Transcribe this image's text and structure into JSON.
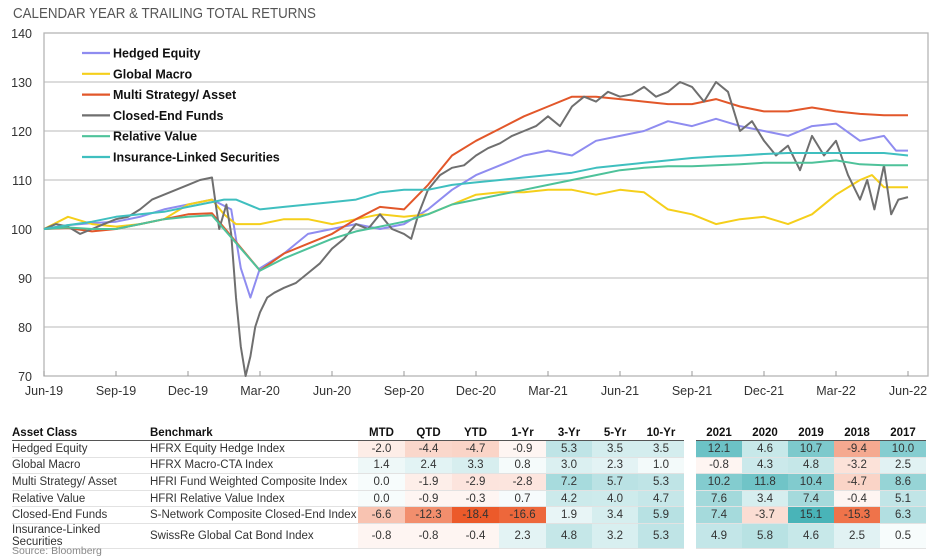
{
  "title": "CALENDAR YEAR & TRAILING TOTAL RETURNS",
  "chart_data": {
    "type": "line",
    "title": "CALENDAR YEAR & TRAILING TOTAL RETURNS",
    "xlabel": "",
    "ylabel": "",
    "ylim": [
      70,
      140
    ],
    "yticks": [
      70,
      80,
      90,
      100,
      110,
      120,
      130,
      140
    ],
    "xticks": [
      "Jun-19",
      "Sep-19",
      "Dec-19",
      "Mar-20",
      "Jun-20",
      "Sep-20",
      "Dec-20",
      "Mar-21",
      "Jun-21",
      "Sep-21",
      "Dec-21",
      "Mar-22",
      "Jun-22"
    ],
    "x_unit": "months since Jun-19",
    "grid": "horizontal",
    "legend_position": "top-left",
    "series": [
      {
        "name": "Hedged Equity",
        "color": "#8f8cf0",
        "x": [
          0,
          1,
          2,
          3,
          4,
          5,
          6,
          7,
          7.8,
          8.2,
          8.6,
          9,
          10,
          11,
          12,
          13,
          14,
          15,
          16,
          17,
          18,
          19,
          20,
          21,
          22,
          23,
          24,
          25,
          26,
          27,
          28,
          29,
          30,
          31,
          32,
          33,
          34,
          35,
          35.5,
          36
        ],
        "y": [
          100,
          100.8,
          101.2,
          101.5,
          102.5,
          104,
          105,
          106,
          104,
          92,
          86,
          92,
          95,
          99,
          100,
          101,
          100,
          101,
          104,
          108,
          111,
          113,
          115,
          116,
          115,
          118,
          119,
          120,
          122,
          121,
          122.5,
          121,
          120,
          119,
          121,
          121.5,
          118,
          119,
          116,
          116
        ]
      },
      {
        "name": "Global  Macro",
        "color": "#f5cf1b",
        "x": [
          0,
          1,
          2,
          3,
          4,
          5,
          6,
          7,
          7.5,
          8,
          9,
          10,
          11,
          12,
          13,
          14,
          15,
          16,
          17,
          18,
          19,
          20,
          21,
          22,
          23,
          24,
          25,
          26,
          27,
          28,
          29,
          30,
          31,
          32,
          33,
          34,
          34.5,
          35,
          36
        ],
        "y": [
          100,
          102.5,
          101,
          100.5,
          101,
          102,
          105,
          106,
          103,
          101,
          101,
          102,
          102,
          101,
          102,
          103,
          102.5,
          103,
          105,
          107,
          107.5,
          107.5,
          108,
          108,
          107,
          108,
          107.5,
          104,
          103,
          101,
          102,
          102.5,
          101,
          103,
          107,
          110,
          111,
          108.5,
          108.5
        ]
      },
      {
        "name": "Multi Strategy/ Asset",
        "color": "#e2572a",
        "x": [
          0,
          1,
          2,
          3,
          4,
          5,
          6,
          7,
          9,
          10,
          11,
          12,
          13,
          14,
          15,
          16,
          17,
          18,
          19,
          20,
          21,
          22,
          23,
          24,
          25,
          26,
          27,
          28,
          29,
          30,
          31,
          32,
          33,
          34,
          35,
          36
        ],
        "y": [
          100,
          100.2,
          99.5,
          100,
          101,
          102,
          103,
          103.2,
          91.5,
          95,
          97,
          99,
          102,
          104.5,
          104,
          109,
          115,
          118,
          120.5,
          123,
          125,
          127,
          127,
          126.5,
          126,
          125.5,
          125.5,
          126.5,
          125,
          124,
          124,
          124.8,
          124,
          123.5,
          123.2,
          123.2
        ]
      },
      {
        "name": "Closed-End Funds",
        "color": "#6f6f6f",
        "x": [
          0,
          0.5,
          1,
          1.5,
          2,
          2.5,
          3,
          3.5,
          4,
          4.5,
          5,
          5.5,
          6,
          6.5,
          7,
          7.3,
          7.6,
          7.8,
          8,
          8.2,
          8.4,
          8.6,
          8.8,
          9,
          9.3,
          9.6,
          10,
          10.5,
          11,
          11.5,
          12,
          12.5,
          13,
          13.5,
          14,
          14.5,
          15,
          15.3,
          15.6,
          16,
          16.5,
          17,
          17.5,
          18,
          18.5,
          19,
          19.5,
          20,
          20.5,
          21,
          21.5,
          22,
          22.5,
          23,
          23.5,
          24,
          24.5,
          25,
          25.5,
          26,
          26.5,
          27,
          27.5,
          28,
          28.5,
          29,
          29.5,
          30,
          30.5,
          31,
          31.5,
          32,
          32.5,
          33,
          33.5,
          34,
          34.3,
          34.6,
          35,
          35.3,
          35.6,
          36
        ],
        "y": [
          100,
          101,
          100.5,
          99,
          100,
          101,
          102,
          102.5,
          104,
          106,
          107,
          108,
          109,
          110,
          110.5,
          100,
          105,
          99,
          86,
          76,
          70,
          74,
          80,
          83,
          86,
          87,
          88,
          89,
          91,
          93,
          96,
          98,
          101,
          100,
          103,
          100,
          99,
          98,
          103,
          108,
          111,
          112.5,
          113,
          115,
          116.5,
          117.5,
          119,
          120,
          121,
          123,
          121,
          125,
          127,
          126,
          128,
          127,
          127.5,
          129,
          127,
          128,
          130,
          129,
          126,
          130,
          128,
          120,
          122,
          118,
          115,
          117,
          112,
          119,
          115,
          118,
          111,
          106,
          110,
          104,
          113,
          103,
          106,
          106.5
        ]
      },
      {
        "name": "Relative Value",
        "color": "#4ec29a",
        "x": [
          0,
          1,
          2,
          3,
          4,
          5,
          6,
          7,
          9,
          10,
          11,
          12,
          13,
          14,
          15,
          16,
          17,
          18,
          19,
          20,
          21,
          22,
          23,
          24,
          25,
          26,
          27,
          28,
          29,
          30,
          31,
          32,
          33,
          34,
          35,
          36
        ],
        "y": [
          100,
          100.3,
          100,
          100,
          101,
          102,
          102.5,
          102.8,
          91.5,
          94,
          96,
          98,
          99.5,
          100.5,
          101.5,
          103,
          105,
          106,
          107,
          108,
          109,
          110,
          111,
          112,
          112.5,
          112.8,
          112.8,
          113,
          113.2,
          113.5,
          113.5,
          113.5,
          114,
          113.2,
          113,
          113
        ]
      },
      {
        "name": "Insurance-Linked Securities",
        "color": "#3fbfbf",
        "x": [
          0,
          1,
          2,
          3,
          4,
          5,
          6,
          7,
          7.5,
          8,
          9,
          10,
          11,
          12,
          13,
          14,
          15,
          16,
          17,
          18,
          19,
          20,
          21,
          22,
          23,
          24,
          25,
          26,
          27,
          28,
          29,
          30,
          31,
          32,
          33,
          34,
          35,
          36
        ],
        "y": [
          100,
          100.8,
          101.5,
          102.5,
          103,
          103.5,
          104.5,
          105.5,
          106,
          106,
          104,
          104.5,
          105,
          105.5,
          106,
          107.5,
          108,
          108,
          109,
          109.5,
          110,
          110.5,
          111,
          111.5,
          112.5,
          113,
          113.5,
          114,
          114.5,
          114.8,
          115,
          115.3,
          115.5,
          115.5,
          115.5,
          115.5,
          115.5,
          115
        ]
      }
    ]
  },
  "table": {
    "headers": {
      "asset_class": "Asset Class",
      "benchmark": "Benchmark",
      "trailing": [
        "MTD",
        "QTD",
        "YTD",
        "1-Yr",
        "3-Yr",
        "5-Yr",
        "10-Yr"
      ],
      "calendar": [
        "2021",
        "2020",
        "2019",
        "2018",
        "2017"
      ]
    },
    "rows": [
      {
        "asset_class": "Hedged Equity",
        "benchmark": "HFRX Equity Hedge Index",
        "trailing": [
          "-2.0",
          "-4.4",
          "-4.7",
          "-0.9",
          "5.3",
          "3.5",
          "3.5"
        ],
        "calendar": [
          "12.1",
          "4.6",
          "10.7",
          "-9.4",
          "10.0"
        ]
      },
      {
        "asset_class": "Global  Macro",
        "benchmark": "HFRX Macro-CTA Index",
        "trailing": [
          "1.4",
          "2.4",
          "3.3",
          "0.8",
          "3.0",
          "2.3",
          "1.0"
        ],
        "calendar": [
          "-0.8",
          "4.3",
          "4.8",
          "-3.2",
          "2.5"
        ]
      },
      {
        "asset_class": "Multi Strategy/ Asset",
        "benchmark": "HFRI Fund Weighted Composite Index",
        "trailing": [
          "0.0",
          "-1.9",
          "-2.9",
          "-2.8",
          "7.2",
          "5.7",
          "5.3"
        ],
        "calendar": [
          "10.2",
          "11.8",
          "10.4",
          "-4.7",
          "8.6"
        ]
      },
      {
        "asset_class": "Relative Value",
        "benchmark": "HFRI Relative Value Index",
        "trailing": [
          "0.0",
          "-0.9",
          "-0.3",
          "0.7",
          "4.2",
          "4.0",
          "4.7"
        ],
        "calendar": [
          "7.6",
          "3.4",
          "7.4",
          "-0.4",
          "5.1"
        ]
      },
      {
        "asset_class": "Closed-End Funds",
        "benchmark": "S-Network Composite Closed-End Index",
        "trailing": [
          "-6.6",
          "-12.3",
          "-18.4",
          "-16.6",
          "1.9",
          "3.4",
          "5.9"
        ],
        "calendar": [
          "7.4",
          "-3.7",
          "15.1",
          "-15.3",
          "6.3"
        ]
      },
      {
        "asset_class": "Insurance-Linked Securities",
        "benchmark": "SwissRe Global Cat Bond Index",
        "trailing": [
          "-0.8",
          "-0.8",
          "-0.4",
          "2.3",
          "4.8",
          "3.2",
          "5.3"
        ],
        "calendar": [
          "4.9",
          "5.8",
          "4.6",
          "2.5",
          "0.5"
        ]
      }
    ],
    "heat_colors": {
      "positive": "#3fb0b4",
      "negative": "#ec5a2a",
      "neutral": "#ffffff"
    }
  },
  "source": "Source: Bloomberg"
}
